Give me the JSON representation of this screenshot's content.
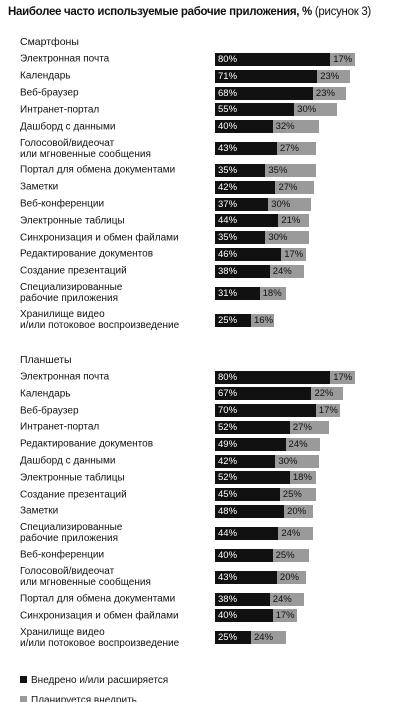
{
  "chart_data": [
    {
      "type": "bar",
      "stacked": true,
      "title": "Наиболее часто используемые рабочие приложения, %",
      "title_note": "(рисунок 3)",
      "subtitle": "Смартфоны",
      "categories": [
        "Электронная почта",
        "Календарь",
        "Веб-браузер",
        "Интранет-портал",
        "Дашборд с данными",
        "Голосовой/видеочат\nили мгновенные сообщения",
        "Портал для обмена документами",
        "Заметки",
        "Веб-конференции",
        "Электронные таблицы",
        "Синхронизация и обмен файлами",
        "Редактирование документов",
        "Создание презентаций",
        "Специализированные\nрабочие приложения",
        "Хранилище видео\nи/или потоковое воспроизведение"
      ],
      "series": [
        {
          "name": "Внедрено и/или расширяется",
          "color": "#111111",
          "values": [
            80,
            71,
            68,
            55,
            40,
            43,
            35,
            42,
            37,
            44,
            35,
            46,
            38,
            31,
            25
          ],
          "value_labels": [
            "80%",
            "71%",
            "68%",
            "55%",
            "40%",
            "43%",
            "35%",
            "42%",
            "37%",
            "44%",
            "35%",
            "46%",
            "38%",
            "31%",
            "25%"
          ]
        },
        {
          "name": "Планируется внедрить",
          "color": "#9a9a9a",
          "values": [
            17,
            23,
            23,
            30,
            32,
            27,
            35,
            27,
            30,
            21,
            30,
            17,
            24,
            18,
            16
          ],
          "value_labels": [
            "17%",
            "23%",
            "23%",
            "30%",
            "32%",
            "27%",
            "35%",
            "27%",
            "30%",
            "21%",
            "30%",
            "17%",
            "24%",
            "18%",
            "16%"
          ]
        }
      ]
    },
    {
      "type": "bar",
      "stacked": true,
      "subtitle": "Планшеты",
      "categories": [
        "Электронная почта",
        "Календарь",
        "Веб-браузер",
        "Интранет-портал",
        "Редактирование документов",
        "Дашборд с данными",
        "Электронные таблицы",
        "Создание презентаций",
        "Заметки",
        "Специализированные\nрабочие приложения",
        "Веб-конференции",
        "Голосовой/видеочат\nили мгновенные сообщения",
        "Портал для обмена документами",
        "Синхронизация и обмен файлами",
        "Хранилище видео\nи/или потоковое воспроизведение"
      ],
      "series": [
        {
          "color": "#111111",
          "values": [
            80,
            67,
            70,
            52,
            49,
            42,
            52,
            45,
            48,
            44,
            40,
            43,
            38,
            40,
            25
          ],
          "value_labels": [
            "80%",
            "67%",
            "70%",
            "52%",
            "49%",
            "42%",
            "52%",
            "45%",
            "48%",
            "44%",
            "40%",
            "43%",
            "38%",
            "40%",
            "25%"
          ]
        },
        {
          "color": "#9a9a9a",
          "values": [
            17,
            22,
            17,
            27,
            24,
            30,
            18,
            25,
            20,
            24,
            25,
            20,
            24,
            17,
            24
          ],
          "value_labels": [
            "17%",
            "22%",
            "17%",
            "27%",
            "24%",
            "30%",
            "18%",
            "25%",
            "20%",
            "24%",
            "25%",
            "20%",
            "24%",
            "17%",
            "24%"
          ]
        }
      ]
    }
  ]
}
